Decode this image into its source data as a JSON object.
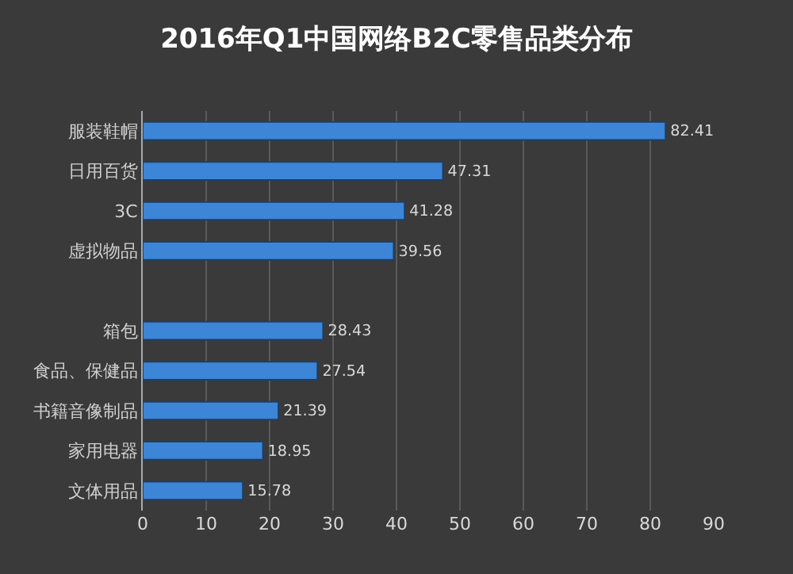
{
  "chart_data": {
    "type": "bar",
    "orientation": "horizontal",
    "title": "2016年Q1中国网络B2C零售品类分布",
    "categories": [
      "服装鞋帽",
      "日用百货",
      "3C",
      "虚拟物品",
      null,
      "箱包",
      "食品、保健品",
      "书籍音像制品",
      "家用电器",
      "文体用品"
    ],
    "values": [
      82.41,
      47.31,
      41.28,
      39.56,
      null,
      28.43,
      27.54,
      21.39,
      18.95,
      15.78
    ],
    "color": "#3d85d6",
    "data_labels": true,
    "xlim": [
      0,
      90
    ],
    "xticks": [
      0,
      10,
      20,
      30,
      40,
      50,
      60,
      70,
      80,
      90
    ],
    "grid": "x",
    "legend": false
  }
}
